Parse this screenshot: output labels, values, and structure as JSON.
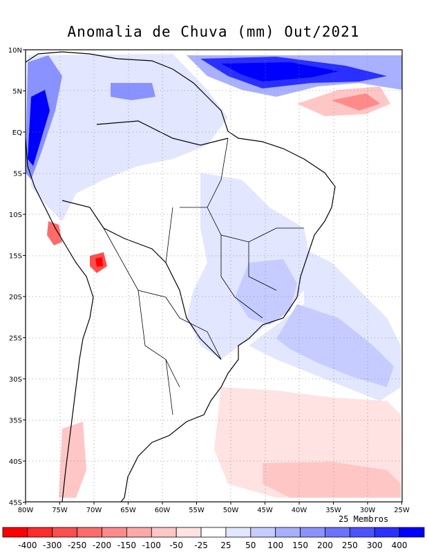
{
  "title": "Anomalia de Chuva (mm) Out/2021",
  "members_label": "25 Membros",
  "lon_ticks": [
    "80W",
    "75W",
    "70W",
    "65W",
    "60W",
    "55W",
    "50W",
    "45W",
    "40W",
    "35W",
    "30W",
    "25W"
  ],
  "lat_ticks": [
    "10N",
    "5N",
    "EQ",
    "5S",
    "10S",
    "15S",
    "20S",
    "25S",
    "30S",
    "35S",
    "40S",
    "45S"
  ],
  "colorbar": {
    "colors": [
      "#ff0000",
      "#ff2a2a",
      "#ff4d4d",
      "#ff6a6a",
      "#ff8a8a",
      "#ffa8a8",
      "#ffc6c6",
      "#ffe2e2",
      "#ffffff",
      "#e2e6ff",
      "#c6ccff",
      "#a8b0ff",
      "#8a92ff",
      "#6a72ff",
      "#4d52ff",
      "#2a30ff",
      "#0000ff"
    ],
    "labels": [
      "-400",
      "-300",
      "-250",
      "-200",
      "-150",
      "-100",
      "-50",
      "-25",
      "25",
      "50",
      "100",
      "150",
      "200",
      "250",
      "300",
      "400"
    ]
  }
}
